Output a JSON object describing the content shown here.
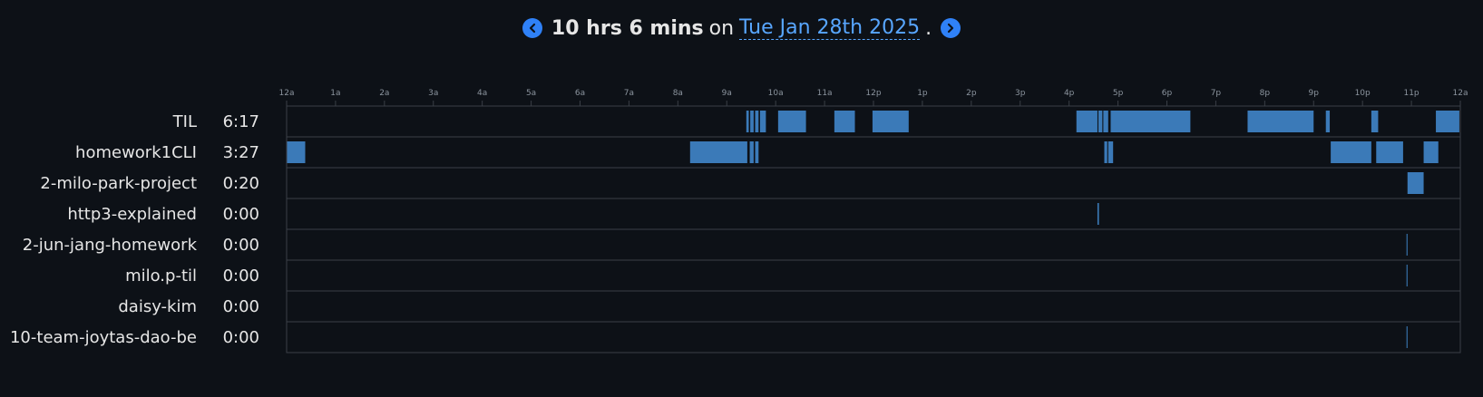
{
  "header": {
    "duration": "10 hrs 6 mins",
    "on_word": "on",
    "date": "Tue Jan 28th 2025",
    "period": ".",
    "prev_icon": "chevron-left-icon",
    "next_icon": "chevron-right-icon",
    "accent_color": "#2f81f7"
  },
  "chart_data": {
    "type": "timeline",
    "x_unit": "hour of day",
    "xlim": [
      0,
      24
    ],
    "tick_labels": [
      "12a",
      "1a",
      "2a",
      "3a",
      "4a",
      "5a",
      "6a",
      "7a",
      "8a",
      "9a",
      "10a",
      "11a",
      "12p",
      "1p",
      "2p",
      "3p",
      "4p",
      "5p",
      "6p",
      "7p",
      "8p",
      "9p",
      "10p",
      "11p",
      "12a"
    ],
    "bar_color": "#3b7ab8",
    "rows": [
      {
        "name": "TIL",
        "total": "6:17",
        "segments": [
          [
            9.4,
            9.45
          ],
          [
            9.48,
            9.55
          ],
          [
            9.58,
            9.65
          ],
          [
            9.68,
            9.8
          ],
          [
            10.05,
            10.62
          ],
          [
            11.2,
            11.62
          ],
          [
            11.98,
            12.72
          ],
          [
            16.15,
            16.58
          ],
          [
            16.6,
            16.68
          ],
          [
            16.7,
            16.8
          ],
          [
            16.85,
            18.48
          ],
          [
            19.65,
            21.0
          ],
          [
            21.25,
            21.33
          ],
          [
            22.18,
            22.32
          ],
          [
            23.5,
            23.98
          ]
        ]
      },
      {
        "name": "homework1CLI",
        "total": "3:27",
        "segments": [
          [
            0.0,
            0.38
          ],
          [
            8.25,
            9.42
          ],
          [
            9.47,
            9.55
          ],
          [
            9.58,
            9.65
          ],
          [
            16.72,
            16.78
          ],
          [
            16.8,
            16.9
          ],
          [
            21.35,
            22.18
          ],
          [
            22.28,
            22.83
          ],
          [
            23.25,
            23.55
          ]
        ]
      },
      {
        "name": "2-milo-park-project",
        "total": "0:20",
        "segments": [
          [
            22.92,
            23.25
          ]
        ]
      },
      {
        "name": "http3-explained",
        "total": "0:00",
        "segments": [
          [
            16.58,
            16.61
          ]
        ]
      },
      {
        "name": "2-jun-jang-homework",
        "total": "0:00",
        "segments": [
          [
            22.9,
            22.92
          ]
        ]
      },
      {
        "name": "milo.p-til",
        "total": "0:00",
        "segments": [
          [
            22.9,
            22.92
          ]
        ]
      },
      {
        "name": "daisy-kim",
        "total": "0:00",
        "segments": []
      },
      {
        "name": "10-team-joytas-dao-be",
        "total": "0:00",
        "segments": [
          [
            22.9,
            22.92
          ]
        ]
      }
    ]
  }
}
